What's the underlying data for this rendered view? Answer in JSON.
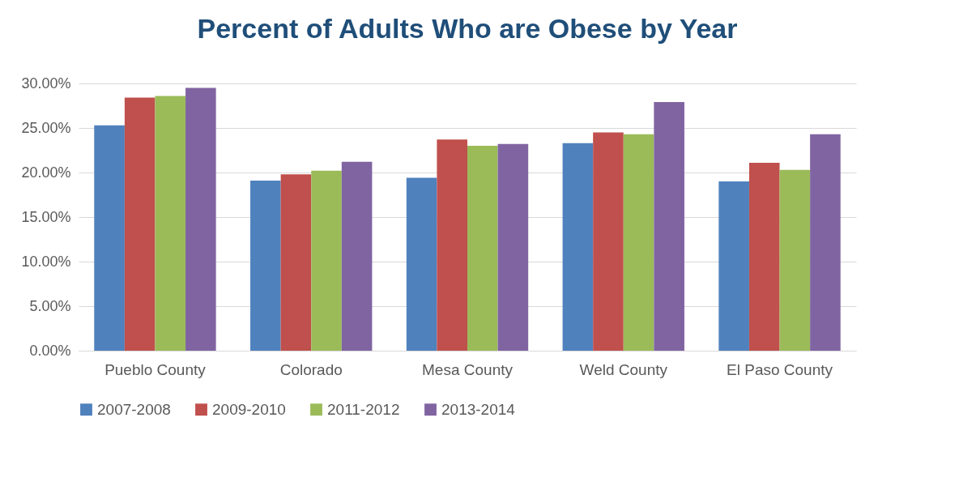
{
  "chart_data": {
    "type": "bar",
    "title": "Percent of Adults Who are Obese by Year",
    "categories": [
      "Pueblo County",
      "Colorado",
      "Mesa County",
      "Weld County",
      "El Paso County"
    ],
    "series": [
      {
        "name": "2007-2008",
        "color": "#4f81bd",
        "values": [
          25.3,
          19.1,
          19.4,
          23.3,
          19.0
        ]
      },
      {
        "name": "2009-2010",
        "color": "#c0504d",
        "values": [
          28.4,
          19.8,
          23.7,
          24.5,
          21.1
        ]
      },
      {
        "name": "2011-2012",
        "color": "#9bbb59",
        "values": [
          28.6,
          20.2,
          23.0,
          24.3,
          20.3
        ]
      },
      {
        "name": "2013-2014",
        "color": "#8064a2",
        "values": [
          29.5,
          21.2,
          23.2,
          27.9,
          24.3
        ]
      }
    ],
    "ylim": [
      0,
      30
    ],
    "yticks": [
      {
        "value": 0,
        "label": "0.00%"
      },
      {
        "value": 5,
        "label": "5.00%"
      },
      {
        "value": 10,
        "label": "10.00%"
      },
      {
        "value": 15,
        "label": "15.00%"
      },
      {
        "value": 20,
        "label": "20.00%"
      },
      {
        "value": 25,
        "label": "25.00%"
      },
      {
        "value": 30,
        "label": "30.00%"
      }
    ],
    "grid": "y",
    "legend": "bottom"
  }
}
